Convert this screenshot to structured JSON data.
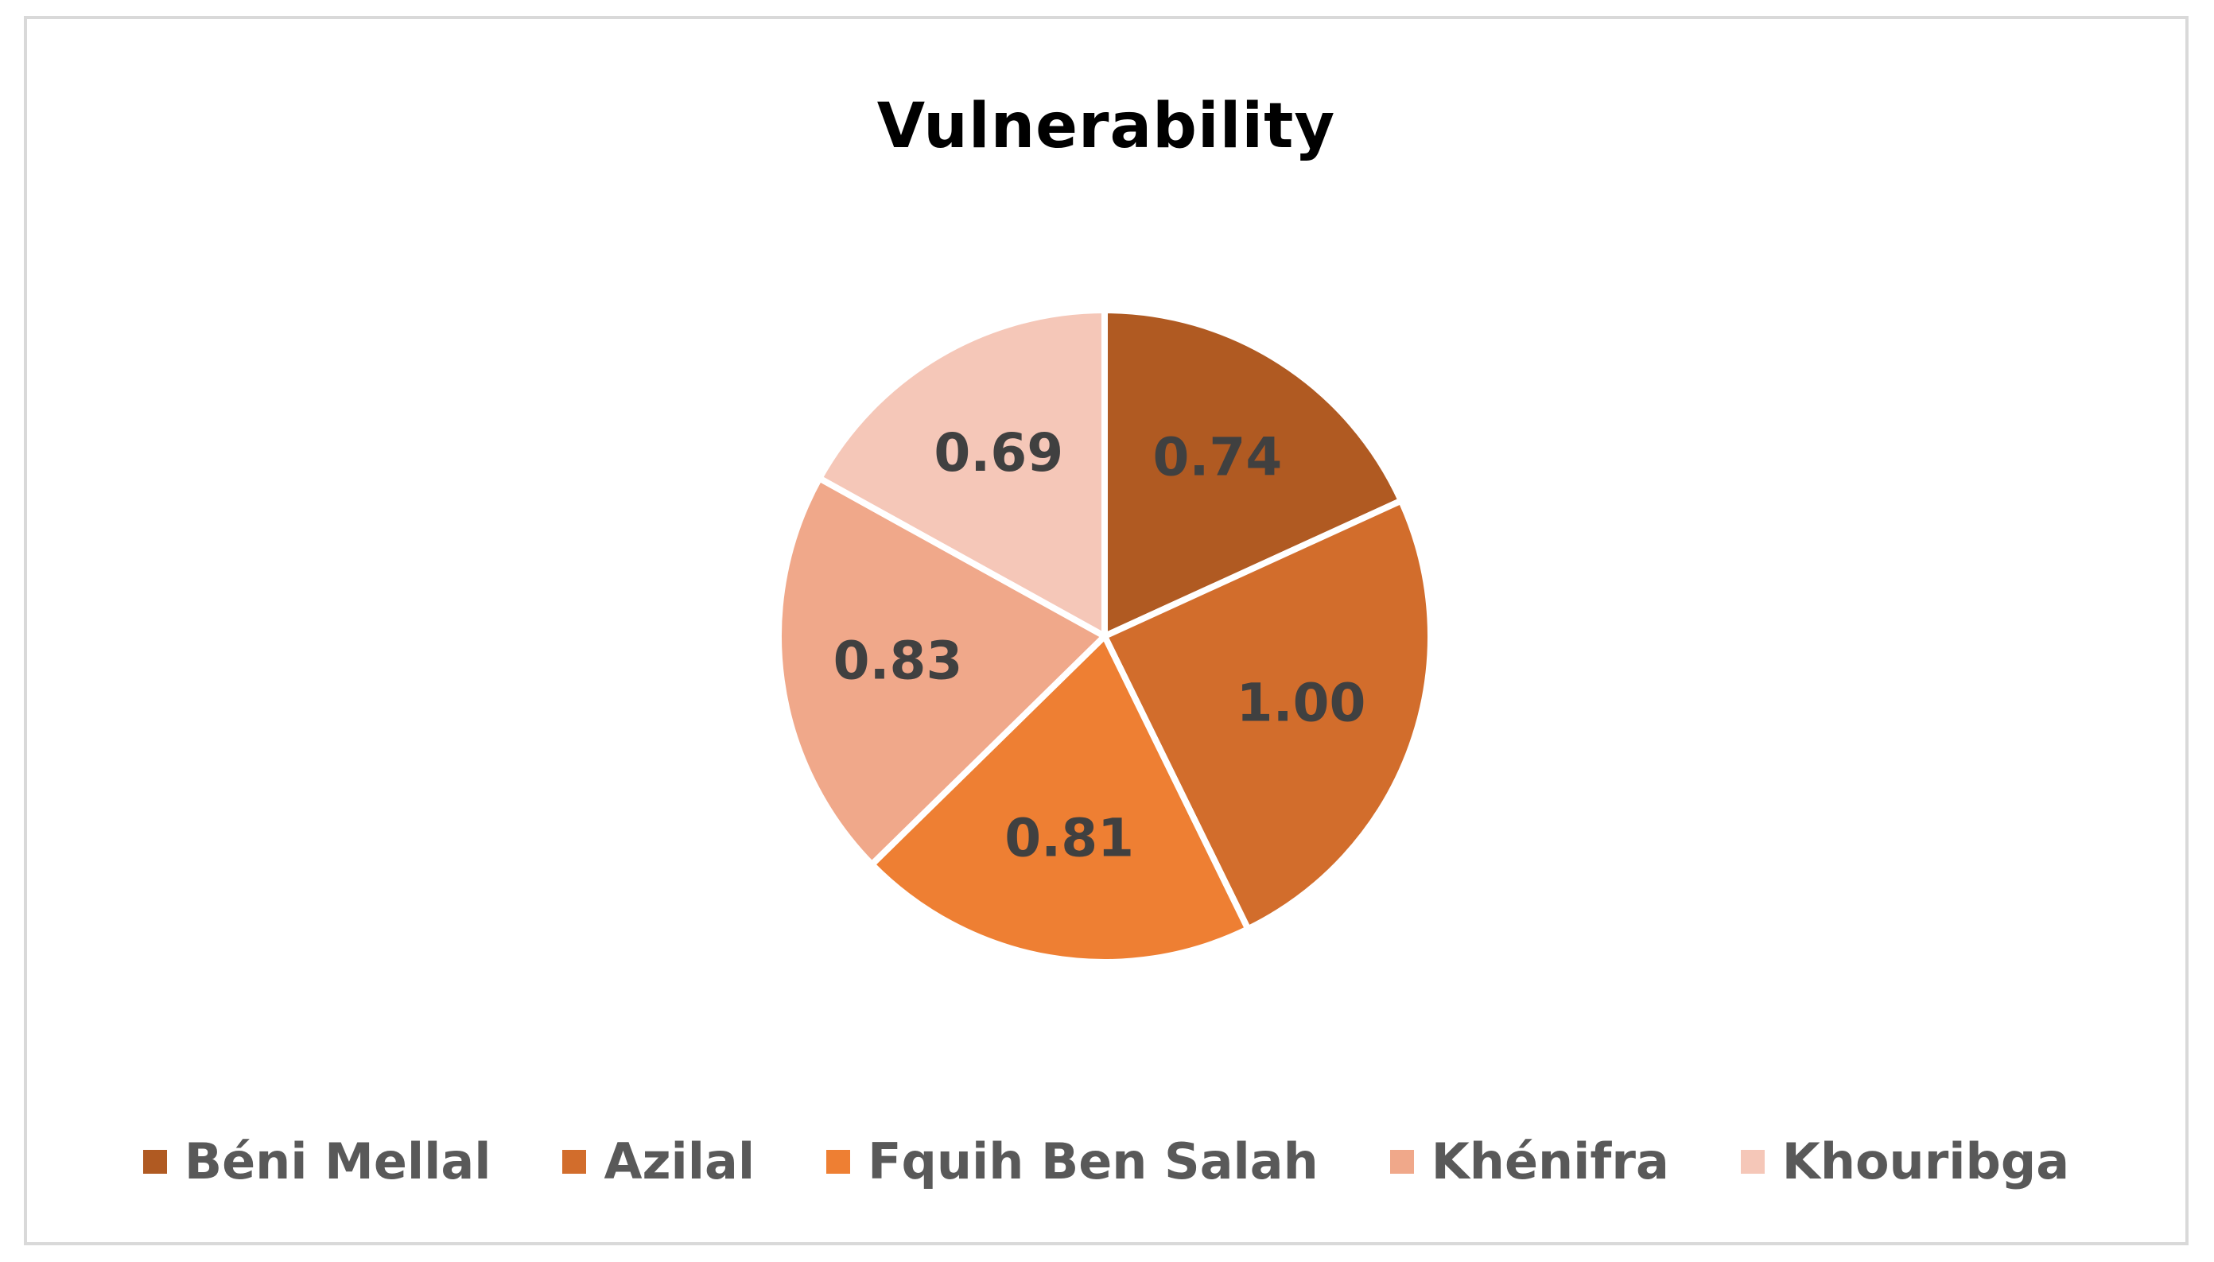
{
  "chart_data": {
    "type": "pie",
    "title": "Vulnerability",
    "categories": [
      "Béni Mellal",
      "Azilal",
      "Fquih Ben Salah",
      "Khénifra",
      "Khouribga"
    ],
    "values": [
      0.74,
      1.0,
      0.81,
      0.83,
      0.69
    ],
    "labels": [
      "0.74",
      "1.00",
      "0.81",
      "0.83",
      "0.69"
    ],
    "colors": [
      "#B05A22",
      "#D26D2C",
      "#EE7F33",
      "#F0A88A",
      "#F5C7B8"
    ],
    "legend_position": "bottom",
    "start_angle": "12 o'clock",
    "direction": "clockwise"
  }
}
